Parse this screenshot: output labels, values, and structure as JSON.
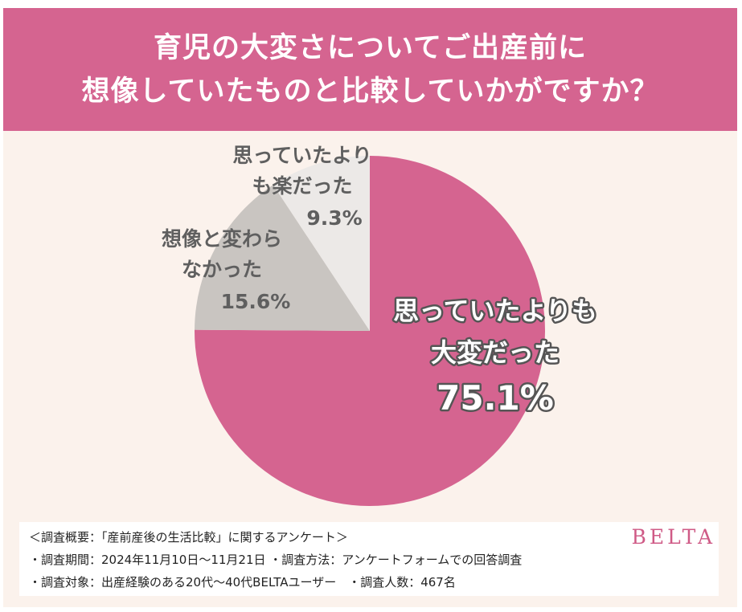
{
  "title_lines": [
    "育児の大変さについてご出産前に",
    "想像していたものと比較していかがですか？"
  ],
  "colors": {
    "header": "#d56490",
    "background": "#fbf2ec",
    "slice_hard": "#d56490",
    "slice_same": "#c9c5c1",
    "slice_easy": "#ece9e7",
    "brand": "#cf5a86"
  },
  "chart_data": {
    "type": "pie",
    "start_angle_deg": 0,
    "direction": "clockwise",
    "slices": [
      {
        "label_lines": [
          "思っていたよりも",
          "大変だった"
        ],
        "value": 75.1,
        "value_label": "75.1%",
        "color": "#d56490"
      },
      {
        "label_lines": [
          "想像と変わら",
          "なかった"
        ],
        "value": 15.6,
        "value_label": "15.6%",
        "color": "#c9c5c1"
      },
      {
        "label_lines": [
          "思っていたより",
          "も楽だった"
        ],
        "value": 9.3,
        "value_label": "9.3%",
        "color": "#ece9e7"
      }
    ]
  },
  "footer": {
    "line1": "＜調査概要：「産前産後の生活比較」に関するアンケート＞",
    "line2": "・調査期間：2024年11月10日〜11月21日 ・調査方法：アンケートフォームでの回答調査",
    "line3": "・調査対象：出産経験のある20代〜40代BELTAユーザー　・調査人数：467名",
    "brand": "BELTA"
  }
}
